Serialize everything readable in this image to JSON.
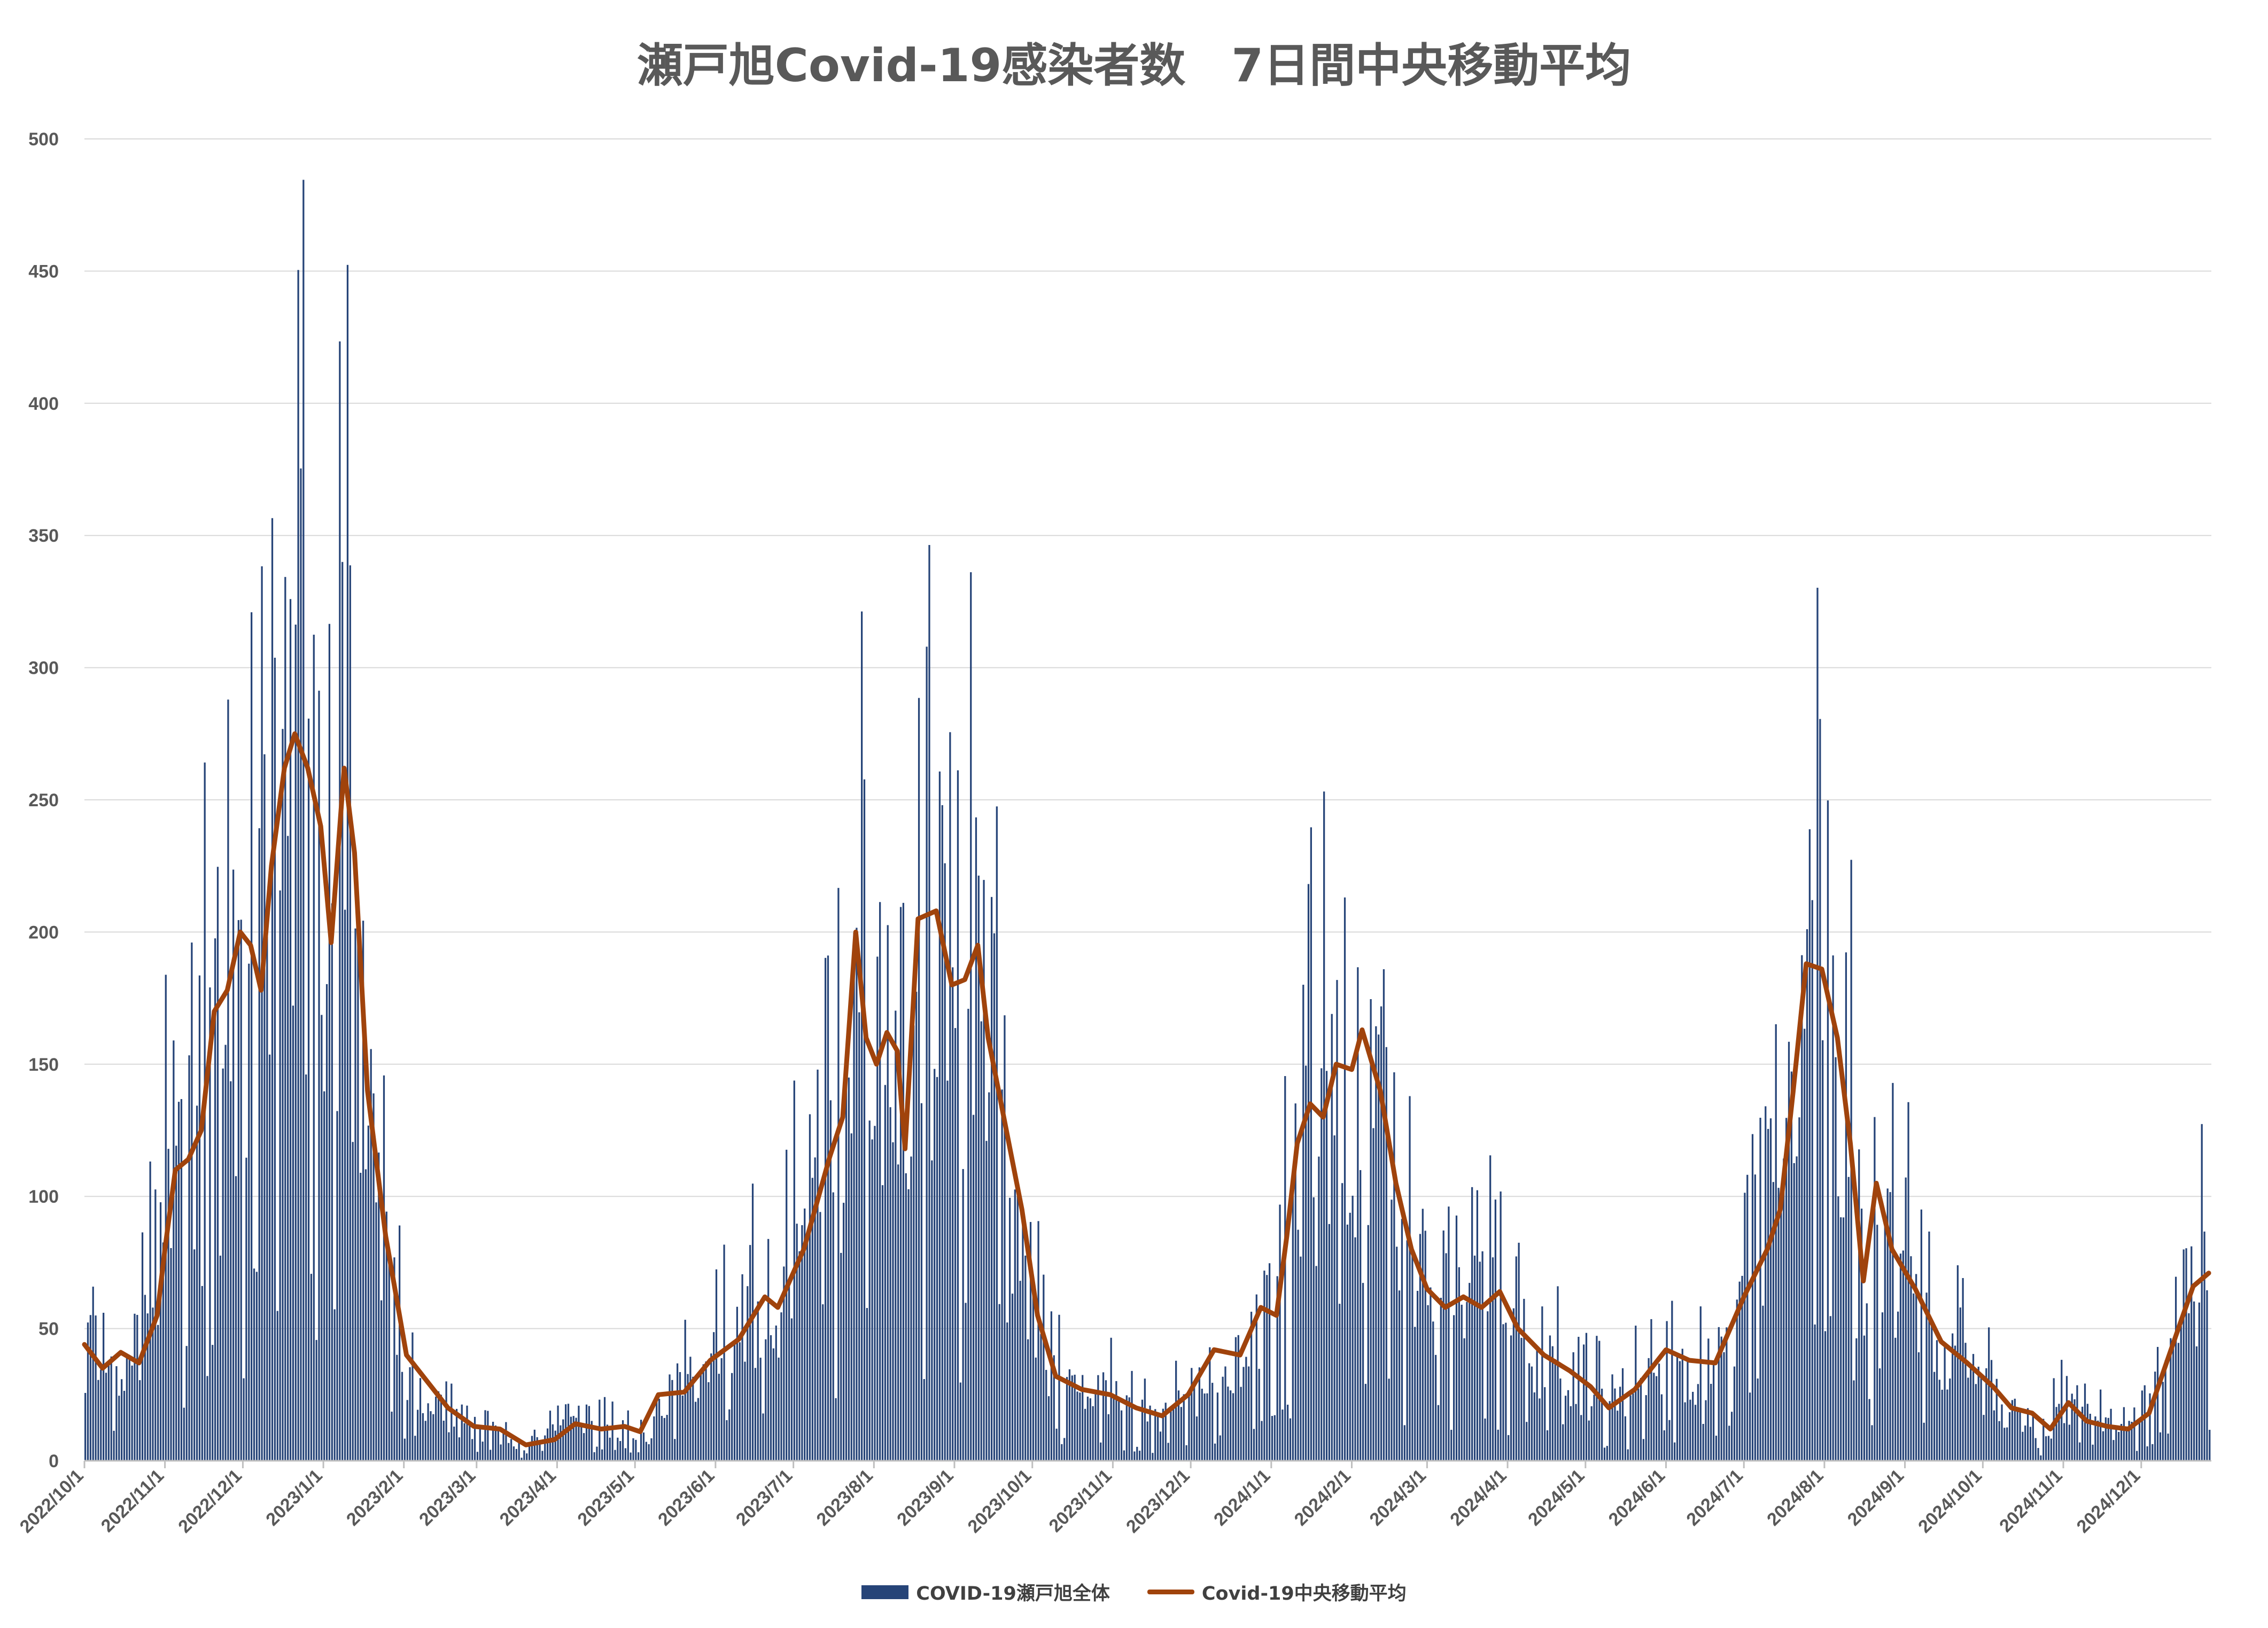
{
  "chart_data": {
    "type": "bar",
    "title": "瀬戸旭Covid-19感染者数　7日間中央移動平均",
    "xlabel": "",
    "ylabel": "",
    "ylim": [
      0,
      500
    ],
    "yticks": [
      0,
      50,
      100,
      150,
      200,
      250,
      300,
      350,
      400,
      450,
      500
    ],
    "grid": true,
    "legend_position": "bottom",
    "x_start_date": "2022-10-01",
    "x_end_date": "2024-12-27",
    "x_ticks": [
      "2022/10/1",
      "2022/11/1",
      "2022/12/1",
      "2023/1/1",
      "2023/2/1",
      "2023/3/1",
      "2023/4/1",
      "2023/5/1",
      "2023/6/1",
      "2023/7/1",
      "2023/8/1",
      "2023/9/1",
      "2023/10/1",
      "2023/11/1",
      "2023/12/1",
      "2024/1/1",
      "2024/2/1",
      "2024/3/1",
      "2024/4/1",
      "2024/5/1",
      "2024/6/1",
      "2024/7/1",
      "2024/8/1",
      "2024/9/1",
      "2024/10/1",
      "2024/11/1",
      "2024/12/1"
    ],
    "series": [
      {
        "name": "COVID-19瀬戸旭全体",
        "type": "bar",
        "color": "#264478",
        "peaks": [
          [
            "2022-10-01",
            45
          ],
          [
            "2022-10-15",
            40
          ],
          [
            "2022-10-25",
            60
          ],
          [
            "2022-11-01",
            110
          ],
          [
            "2022-11-10",
            120
          ],
          [
            "2022-11-20",
            175
          ],
          [
            "2022-11-30",
            200
          ],
          [
            "2022-12-05",
            180
          ],
          [
            "2022-12-12",
            230
          ],
          [
            "2022-12-20",
            275
          ],
          [
            "2022-12-28",
            260
          ],
          [
            "2023-01-03",
            200
          ],
          [
            "2023-01-08",
            260
          ],
          [
            "2023-01-15",
            185
          ],
          [
            "2023-01-25",
            80
          ],
          [
            "2023-02-02",
            35
          ],
          [
            "2023-02-10",
            25
          ],
          [
            "2023-02-20",
            14
          ],
          [
            "2023-03-05",
            13
          ],
          [
            "2023-03-15",
            6
          ],
          [
            "2023-03-25",
            8
          ],
          [
            "2023-04-05",
            14
          ],
          [
            "2023-04-15",
            12
          ],
          [
            "2023-04-25",
            13
          ],
          [
            "2023-05-01",
            11
          ],
          [
            "2023-05-10",
            25
          ],
          [
            "2023-05-20",
            30
          ],
          [
            "2023-06-01",
            40
          ],
          [
            "2023-06-10",
            48
          ],
          [
            "2023-06-20",
            62
          ],
          [
            "2023-06-25",
            58
          ],
          [
            "2023-07-05",
            85
          ],
          [
            "2023-07-15",
            115
          ],
          [
            "2023-07-20",
            130
          ],
          [
            "2023-07-25",
            195
          ],
          [
            "2023-07-30",
            160
          ],
          [
            "2023-08-05",
            160
          ],
          [
            "2023-08-10",
            160
          ],
          [
            "2023-08-14",
            125
          ],
          [
            "2023-08-20",
            200
          ],
          [
            "2023-08-27",
            205
          ],
          [
            "2023-09-03",
            180
          ],
          [
            "2023-09-10",
            190
          ],
          [
            "2023-09-15",
            160
          ],
          [
            "2023-09-20",
            130
          ],
          [
            "2023-09-27",
            90
          ],
          [
            "2023-10-03",
            50
          ],
          [
            "2023-10-10",
            30
          ],
          [
            "2023-10-20",
            25
          ],
          [
            "2023-11-01",
            25
          ],
          [
            "2023-11-10",
            20
          ],
          [
            "2023-11-20",
            18
          ],
          [
            "2023-12-01",
            25
          ],
          [
            "2023-12-10",
            42
          ],
          [
            "2023-12-20",
            40
          ],
          [
            "2023-12-28",
            57
          ],
          [
            "2024-01-03",
            55
          ],
          [
            "2024-01-08",
            90
          ],
          [
            "2024-01-12",
            120
          ],
          [
            "2024-01-20",
            135
          ],
          [
            "2024-01-25",
            145
          ],
          [
            "2024-02-01",
            150
          ],
          [
            "2024-02-05",
            160
          ],
          [
            "2024-02-12",
            135
          ],
          [
            "2024-02-18",
            100
          ],
          [
            "2024-02-25",
            75
          ],
          [
            "2024-03-05",
            60
          ],
          [
            "2024-03-12",
            62
          ],
          [
            "2024-03-20",
            58
          ],
          [
            "2024-03-28",
            62
          ],
          [
            "2024-04-05",
            48
          ],
          [
            "2024-04-15",
            40
          ],
          [
            "2024-04-25",
            33
          ],
          [
            "2024-05-01",
            28
          ],
          [
            "2024-05-10",
            20
          ],
          [
            "2024-05-20",
            28
          ],
          [
            "2024-06-01",
            42
          ],
          [
            "2024-06-10",
            38
          ],
          [
            "2024-06-20",
            38
          ],
          [
            "2024-07-01",
            60
          ],
          [
            "2024-07-10",
            80
          ],
          [
            "2024-07-15",
            100
          ],
          [
            "2024-07-20",
            145
          ],
          [
            "2024-07-25",
            185
          ],
          [
            "2024-08-01",
            185
          ],
          [
            "2024-08-07",
            160
          ],
          [
            "2024-08-12",
            120
          ],
          [
            "2024-08-17",
            70
          ],
          [
            "2024-08-22",
            100
          ],
          [
            "2024-08-28",
            80
          ],
          [
            "2024-09-05",
            65
          ],
          [
            "2024-09-15",
            45
          ],
          [
            "2024-09-25",
            35
          ],
          [
            "2024-10-05",
            25
          ],
          [
            "2024-10-15",
            18
          ],
          [
            "2024-10-25",
            12
          ],
          [
            "2024-11-01",
            22
          ],
          [
            "2024-11-10",
            15
          ],
          [
            "2024-11-20",
            13
          ],
          [
            "2024-11-28",
            12
          ],
          [
            "2024-12-05",
            20
          ],
          [
            "2024-12-12",
            40
          ],
          [
            "2024-12-20",
            60
          ],
          [
            "2024-12-27",
            70
          ]
        ]
      },
      {
        "name": "Covid-19中央移動平均",
        "type": "line",
        "color": "#A0430C",
        "points": [
          [
            "2022-10-01",
            44
          ],
          [
            "2022-10-08",
            35
          ],
          [
            "2022-10-15",
            41
          ],
          [
            "2022-10-22",
            37
          ],
          [
            "2022-10-29",
            55
          ],
          [
            "2022-11-01",
            80
          ],
          [
            "2022-11-05",
            110
          ],
          [
            "2022-11-10",
            114
          ],
          [
            "2022-11-15",
            125
          ],
          [
            "2022-11-20",
            170
          ],
          [
            "2022-11-25",
            178
          ],
          [
            "2022-11-30",
            200
          ],
          [
            "2022-12-04",
            195
          ],
          [
            "2022-12-08",
            178
          ],
          [
            "2022-12-12",
            225
          ],
          [
            "2022-12-17",
            262
          ],
          [
            "2022-12-21",
            275
          ],
          [
            "2022-12-26",
            262
          ],
          [
            "2022-12-31",
            240
          ],
          [
            "2023-01-04",
            196
          ],
          [
            "2023-01-09",
            262
          ],
          [
            "2023-01-13",
            230
          ],
          [
            "2023-01-18",
            140
          ],
          [
            "2023-01-25",
            85
          ],
          [
            "2023-02-02",
            40
          ],
          [
            "2023-02-10",
            30
          ],
          [
            "2023-02-18",
            20
          ],
          [
            "2023-02-28",
            13
          ],
          [
            "2023-03-10",
            12
          ],
          [
            "2023-03-20",
            6
          ],
          [
            "2023-03-31",
            8
          ],
          [
            "2023-04-08",
            14
          ],
          [
            "2023-04-18",
            12
          ],
          [
            "2023-04-27",
            13
          ],
          [
            "2023-05-03",
            11
          ],
          [
            "2023-05-10",
            25
          ],
          [
            "2023-05-20",
            26
          ],
          [
            "2023-05-30",
            38
          ],
          [
            "2023-06-10",
            46
          ],
          [
            "2023-06-20",
            62
          ],
          [
            "2023-06-25",
            58
          ],
          [
            "2023-07-05",
            80
          ],
          [
            "2023-07-15",
            115
          ],
          [
            "2023-07-20",
            130
          ],
          [
            "2023-07-25",
            200
          ],
          [
            "2023-07-29",
            160
          ],
          [
            "2023-08-02",
            150
          ],
          [
            "2023-08-06",
            162
          ],
          [
            "2023-08-10",
            155
          ],
          [
            "2023-08-13",
            118
          ],
          [
            "2023-08-18",
            205
          ],
          [
            "2023-08-25",
            208
          ],
          [
            "2023-08-31",
            180
          ],
          [
            "2023-09-05",
            182
          ],
          [
            "2023-09-10",
            195
          ],
          [
            "2023-09-14",
            160
          ],
          [
            "2023-09-20",
            130
          ],
          [
            "2023-09-27",
            95
          ],
          [
            "2023-10-03",
            55
          ],
          [
            "2023-10-10",
            32
          ],
          [
            "2023-10-20",
            27
          ],
          [
            "2023-10-31",
            25
          ],
          [
            "2023-11-10",
            20
          ],
          [
            "2023-11-20",
            17
          ],
          [
            "2023-11-30",
            25
          ],
          [
            "2023-12-10",
            42
          ],
          [
            "2023-12-20",
            40
          ],
          [
            "2023-12-28",
            58
          ],
          [
            "2024-01-03",
            55
          ],
          [
            "2024-01-07",
            85
          ],
          [
            "2024-01-11",
            120
          ],
          [
            "2024-01-16",
            135
          ],
          [
            "2024-01-21",
            130
          ],
          [
            "2024-01-26",
            150
          ],
          [
            "2024-02-01",
            148
          ],
          [
            "2024-02-05",
            163
          ],
          [
            "2024-02-12",
            140
          ],
          [
            "2024-02-18",
            105
          ],
          [
            "2024-02-24",
            80
          ],
          [
            "2024-03-01",
            65
          ],
          [
            "2024-03-08",
            58
          ],
          [
            "2024-03-15",
            62
          ],
          [
            "2024-03-22",
            58
          ],
          [
            "2024-03-29",
            64
          ],
          [
            "2024-04-05",
            50
          ],
          [
            "2024-04-15",
            40
          ],
          [
            "2024-04-25",
            34
          ],
          [
            "2024-05-03",
            28
          ],
          [
            "2024-05-10",
            20
          ],
          [
            "2024-05-20",
            27
          ],
          [
            "2024-06-01",
            42
          ],
          [
            "2024-06-10",
            38
          ],
          [
            "2024-06-20",
            37
          ],
          [
            "2024-07-01",
            62
          ],
          [
            "2024-07-10",
            80
          ],
          [
            "2024-07-15",
            95
          ],
          [
            "2024-07-20",
            140
          ],
          [
            "2024-07-25",
            188
          ],
          [
            "2024-07-31",
            186
          ],
          [
            "2024-08-06",
            160
          ],
          [
            "2024-08-11",
            120
          ],
          [
            "2024-08-16",
            68
          ],
          [
            "2024-08-21",
            105
          ],
          [
            "2024-08-27",
            80
          ],
          [
            "2024-09-05",
            65
          ],
          [
            "2024-09-15",
            45
          ],
          [
            "2024-09-25",
            37
          ],
          [
            "2024-10-05",
            28
          ],
          [
            "2024-10-12",
            20
          ],
          [
            "2024-10-20",
            18
          ],
          [
            "2024-10-27",
            12
          ],
          [
            "2024-11-03",
            22
          ],
          [
            "2024-11-10",
            15
          ],
          [
            "2024-11-18",
            13
          ],
          [
            "2024-11-26",
            12
          ],
          [
            "2024-12-04",
            18
          ],
          [
            "2024-12-10",
            35
          ],
          [
            "2024-12-16",
            52
          ],
          [
            "2024-12-21",
            66
          ],
          [
            "2024-12-27",
            71
          ]
        ]
      }
    ]
  }
}
